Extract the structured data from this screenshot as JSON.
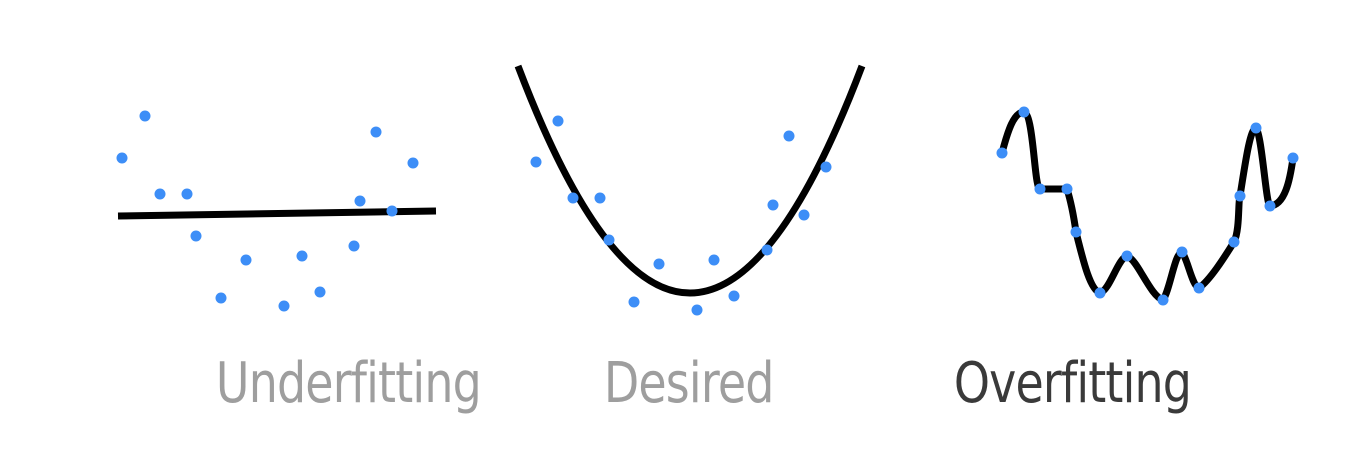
{
  "colors": {
    "point": "#3d8ef7",
    "curve": "#000000",
    "label_inactive": "#9e9e9e",
    "label_active": "#3a3a3a",
    "background": "#ffffff"
  },
  "panels": [
    {
      "id": "underfitting",
      "label": "Underfitting",
      "active": false,
      "fit": "linear"
    },
    {
      "id": "desired",
      "label": "Desired",
      "active": false,
      "fit": "quadratic"
    },
    {
      "id": "overfitting",
      "label": "Overfitting",
      "active": true,
      "fit": "interpolating"
    }
  ]
}
